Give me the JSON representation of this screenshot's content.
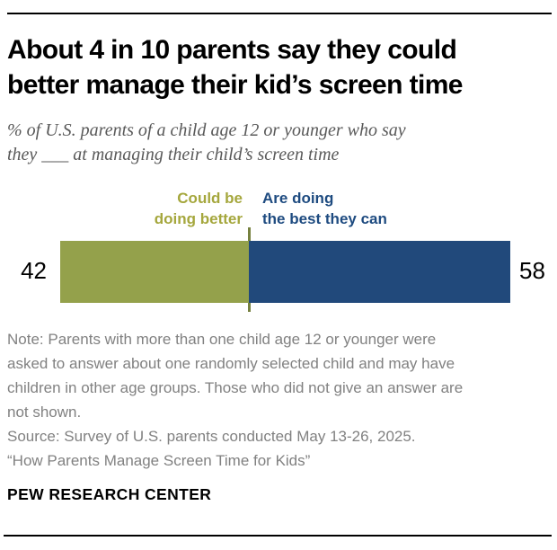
{
  "header": {
    "title_lines": [
      "About 4 in 10 parents say they could",
      "better manage their kid’s screen time"
    ],
    "subtitle_lines": [
      "% of U.S. parents of a child age 12 or younger who say",
      "they ___ at managing their child’s screen time"
    ]
  },
  "chart": {
    "legend_left_lines": [
      "Could be",
      "doing better"
    ],
    "legend_right_lines": [
      "Are doing",
      "the best they can"
    ]
  },
  "chart_data": {
    "type": "bar",
    "orientation": "horizontal",
    "stacked": true,
    "title": "About 4 in 10 parents say they could better manage their kid’s screen time",
    "subtitle": "% of U.S. parents of a child age 12 or younger who say they ___ at managing their child’s screen time",
    "categories": [
      "Could be doing better",
      "Are doing the best they can"
    ],
    "values": [
      42,
      58
    ],
    "unit": "%",
    "xlim": [
      0,
      100
    ],
    "grid": false,
    "legend_position": "above-bar-at-segment-split",
    "value_label_position": "outside-ends",
    "colors": [
      "#94a14b",
      "#21497b"
    ],
    "legend_text_colors": [
      "#a5a73d",
      "#1e4b80"
    ],
    "divider_color": "#76813f"
  },
  "footer": {
    "note_lines": [
      "Note: Parents with more than one child age 12 or younger were",
      "asked to answer about one randomly selected child and may have",
      "children in other age groups. Those who did not give an answer are",
      "not shown.",
      "Source: Survey of U.S. parents conducted May 13-26, 2025.",
      "“How Parents Manage Screen Time for Kids”"
    ],
    "brand": "PEW RESEARCH CENTER"
  }
}
